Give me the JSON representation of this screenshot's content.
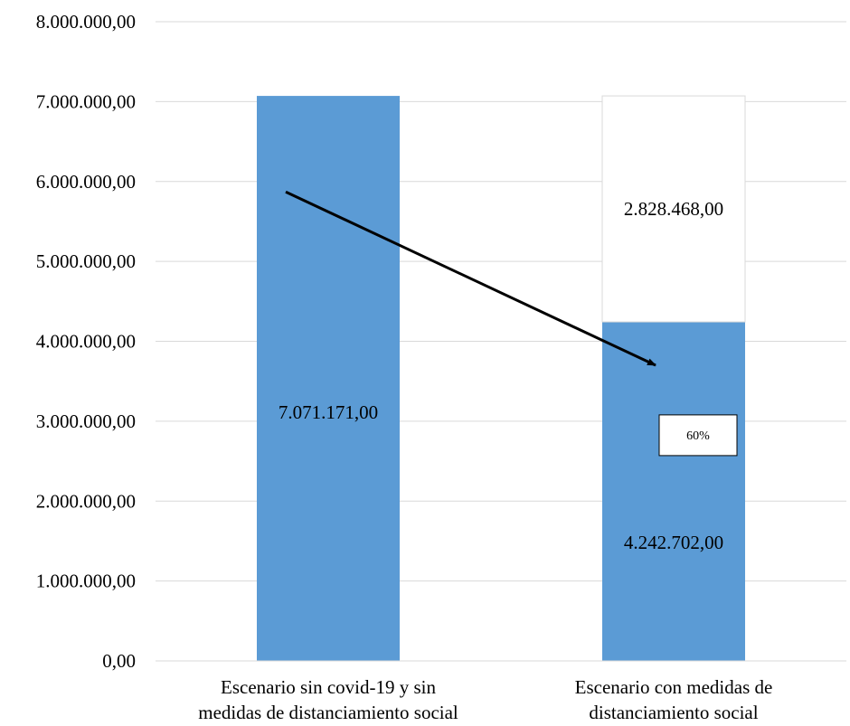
{
  "chart_data": {
    "type": "bar",
    "stacked": true,
    "categories": [
      [
        "Escenario sin covid-19 y sin",
        "medidas de distanciamiento social"
      ],
      [
        "Escenario con medidas de",
        "distanciamiento social"
      ]
    ],
    "series": [
      {
        "values": [
          7071171,
          4242702
        ],
        "labels": [
          "7.071.171,00",
          "4.242.702,00"
        ],
        "color": "#5b9bd5"
      },
      {
        "values": [
          0,
          2828468
        ],
        "labels": [
          "",
          "2.828.468,00"
        ],
        "color": "#ffffff"
      }
    ],
    "ylim": [
      0,
      8000000
    ],
    "y_ticks": [
      "0,00",
      "1.000.000,00",
      "2.000.000,00",
      "3.000.000,00",
      "4.000.000,00",
      "5.000.000,00",
      "6.000.000,00",
      "7.000.000,00",
      "8.000.000,00"
    ],
    "annotations": [
      {
        "type": "arrow",
        "from": [
          0,
          5870000
        ],
        "to": [
          1,
          3700000
        ]
      },
      {
        "type": "box",
        "text": "60%",
        "anchor": [
          1,
          2830000
        ]
      }
    ],
    "grid": true,
    "title": "",
    "xlabel": "",
    "ylabel": ""
  }
}
